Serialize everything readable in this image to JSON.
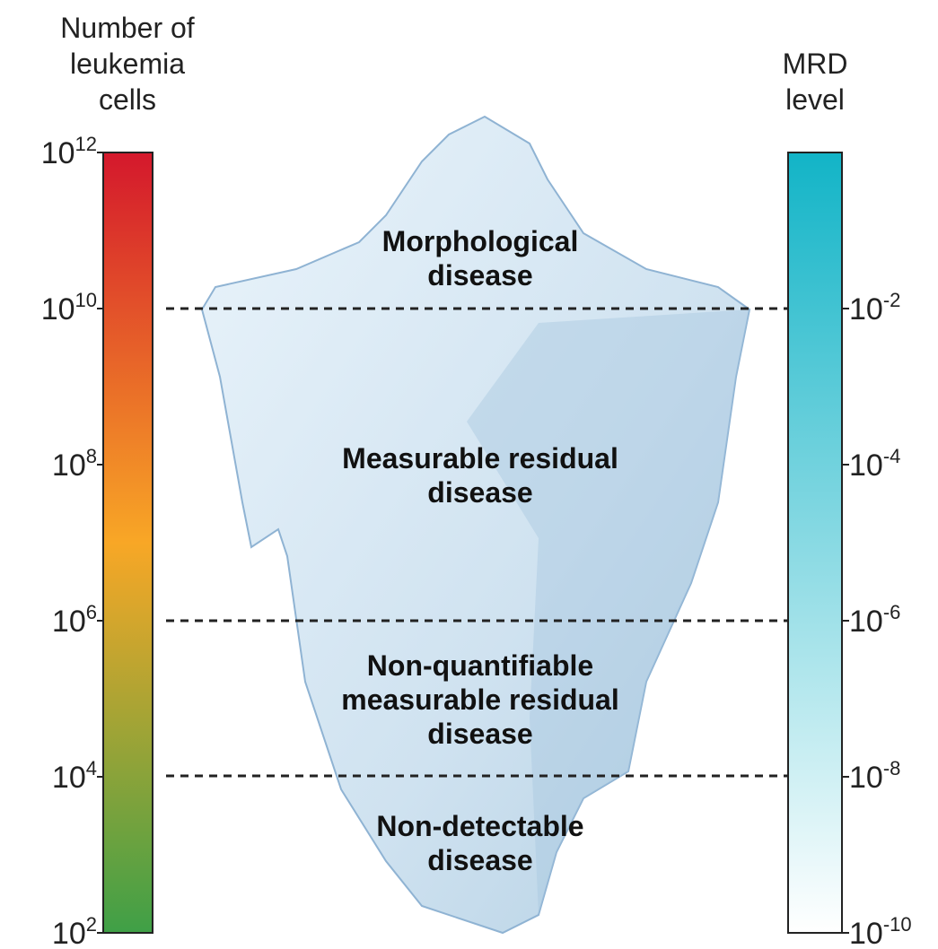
{
  "left_axis": {
    "title": [
      "Number of",
      "leukemia",
      "cells"
    ],
    "ticks": [
      {
        "base": "10",
        "exponent": "12"
      },
      {
        "base": "10",
        "exponent": "10"
      },
      {
        "base": "10",
        "exponent": "8"
      },
      {
        "base": "10",
        "exponent": "6"
      },
      {
        "base": "10",
        "exponent": "4"
      },
      {
        "base": "10",
        "exponent": "2"
      }
    ]
  },
  "right_axis": {
    "title": [
      "MRD",
      "level"
    ],
    "ticks": [
      {
        "base": "10",
        "exponent": "-2"
      },
      {
        "base": "10",
        "exponent": "-4"
      },
      {
        "base": "10",
        "exponent": "-6"
      },
      {
        "base": "10",
        "exponent": "-8"
      },
      {
        "base": "10",
        "exponent": "-10"
      }
    ]
  },
  "regions": [
    {
      "lines": [
        "Morphological",
        "disease"
      ]
    },
    {
      "lines": [
        "Measurable residual",
        "disease"
      ]
    },
    {
      "lines": [
        "Non-quantifiable",
        "measurable residual",
        "disease"
      ]
    },
    {
      "lines": [
        "Non-detectable",
        "disease"
      ]
    }
  ]
}
